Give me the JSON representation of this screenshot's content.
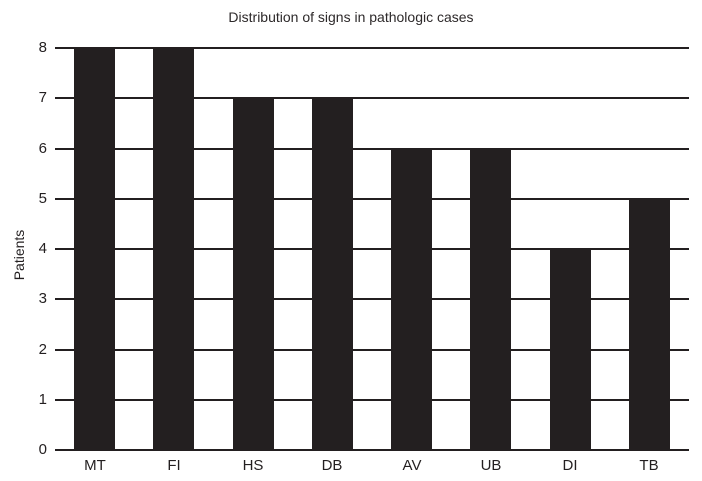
{
  "chart_data": {
    "type": "bar",
    "title": "Distribution of signs in pathologic cases",
    "xlabel": "",
    "ylabel": "Patients",
    "categories": [
      "MT",
      "FI",
      "HS",
      "DB",
      "AV",
      "UB",
      "DI",
      "TB"
    ],
    "values": [
      8,
      8,
      7,
      7,
      6,
      6,
      4,
      5
    ],
    "ylim": [
      0,
      8
    ],
    "yticks": [
      0,
      1,
      2,
      3,
      4,
      5,
      6,
      7,
      8
    ],
    "grid": "horizontal-full-width",
    "legend": "none",
    "bar_color": "#231f20",
    "grid_color": "#231f20",
    "text_color": "#231f20",
    "background_color": "#ffffff"
  }
}
